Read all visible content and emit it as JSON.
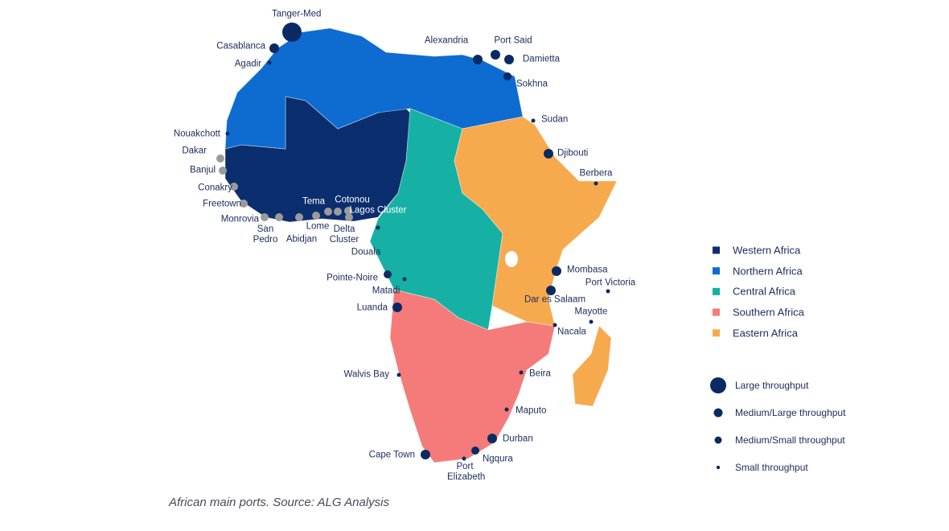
{
  "caption": "African main ports. Source: ALG Analysis",
  "regions": [
    {
      "name": "Western Africa",
      "color": "#0b2e6f"
    },
    {
      "name": "Northern Africa",
      "color": "#0e6bd0"
    },
    {
      "name": "Central Africa",
      "color": "#17b0a4"
    },
    {
      "name": "Southern Africa",
      "color": "#f47b79"
    },
    {
      "name": "Eastern Africa",
      "color": "#f7a94d"
    }
  ],
  "throughput": [
    {
      "label": "Large throughput",
      "ports": [
        "Tanger-Med"
      ]
    },
    {
      "label": "Medium/Large throughput",
      "ports": [
        "Casablanca",
        "Alexandria",
        "Port Said",
        "Damietta",
        "Djibouti",
        "Mombasa",
        "Dar es Salaam",
        "Durban",
        "Cape Town",
        "Luanda"
      ]
    },
    {
      "label": "Medium/Small throughput",
      "ports": [
        "Sokhna",
        "Ngqura",
        "Pointe-Noire"
      ]
    },
    {
      "label": "Small throughput",
      "ports": [
        "Agadir",
        "Sudan",
        "Berbera",
        "Port Victoria",
        "Mayotte",
        "Nacala",
        "Beira",
        "Maputo",
        "Port Elizabeth",
        "Walvis Bay",
        "Matadi",
        "Douala",
        "Nouakchott"
      ]
    }
  ],
  "western_ports": [
    "Dakar",
    "Banjul",
    "Conakry",
    "Freetown",
    "Monrovia",
    "San Pedro",
    "Abidjan",
    "Tema",
    "Lome",
    "Cotonou",
    "Delta Cluster",
    "Lagos Cluster"
  ]
}
